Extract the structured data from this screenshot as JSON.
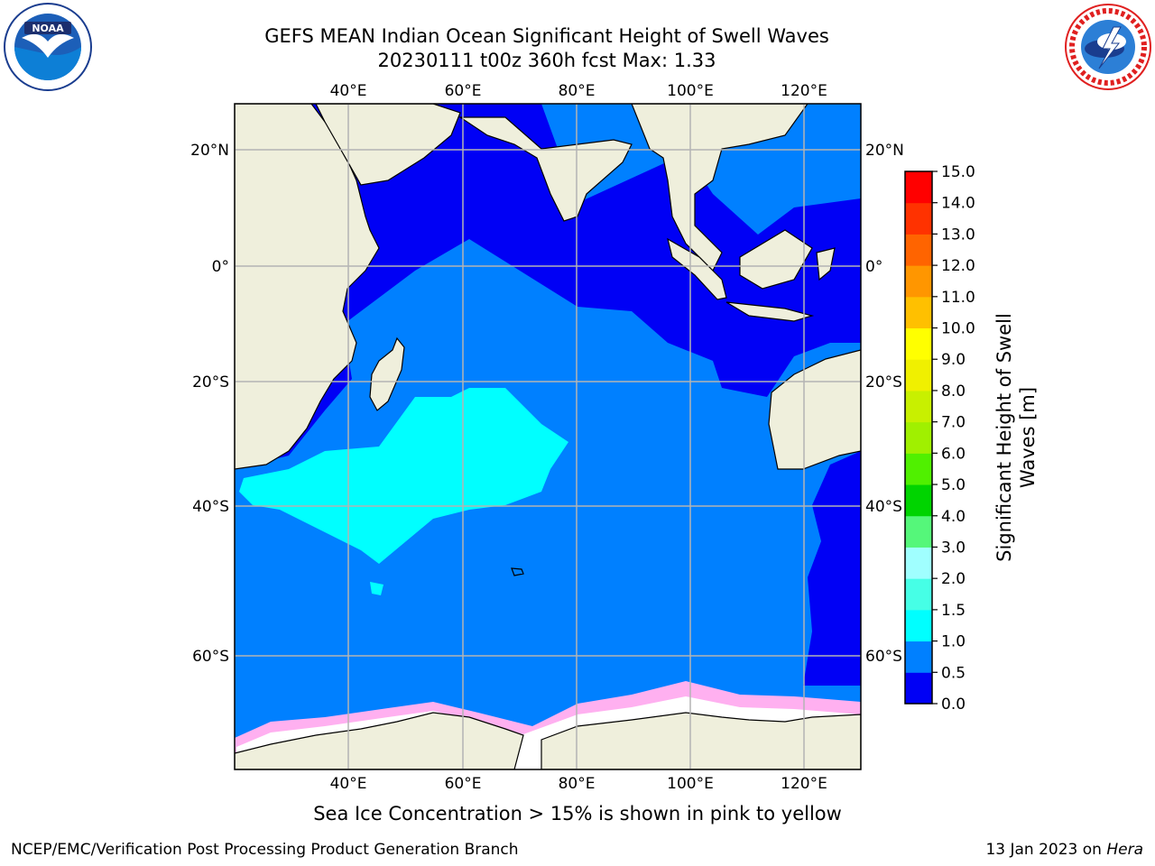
{
  "header": {
    "title_line1": "GEFS MEAN Indian Ocean Significant Height of Swell Waves",
    "title_line2": "20230111 t00z 360h fcst   Max: 1.33"
  },
  "logos": {
    "left": "noaa-logo",
    "right": "nws-logo"
  },
  "map": {
    "lon_labels": [
      "40°E",
      "60°E",
      "80°E",
      "100°E",
      "120°E"
    ],
    "lat_labels": [
      "20°N",
      "0°",
      "20°S",
      "40°S",
      "60°S"
    ],
    "colors": {
      "land": "#efefdc",
      "ocean_low": "#0000f5",
      "ocean_mid": "#0080ff",
      "swell_1_15": "#00ffff",
      "sea_ice": "#ffffff"
    }
  },
  "colorbar": {
    "label_line1": "Significant Height of Swell",
    "label_line2": "Waves [m]",
    "ticks": [
      "0.0",
      "0.5",
      "1.0",
      "1.5",
      "2.0",
      "3.0",
      "4.0",
      "5.0",
      "6.0",
      "7.0",
      "8.0",
      "9.0",
      "10.0",
      "11.0",
      "12.0",
      "13.0",
      "14.0",
      "15.0"
    ],
    "colors": [
      "#0000f5",
      "#0080ff",
      "#00ffff",
      "#46ffe6",
      "#a0ffff",
      "#55f77a",
      "#00d400",
      "#50f000",
      "#a0f000",
      "#c8f000",
      "#f0f000",
      "#ffff00",
      "#ffc000",
      "#ff9600",
      "#ff6400",
      "#ff3200",
      "#ff0000"
    ]
  },
  "caption": "Sea Ice Concentration > 15% is shown in pink to yellow",
  "footer": {
    "left": "NCEP/EMC/Verification Post Processing Product Generation Branch",
    "right_date": "13 Jan 2023 on ",
    "right_host": "Hera"
  }
}
